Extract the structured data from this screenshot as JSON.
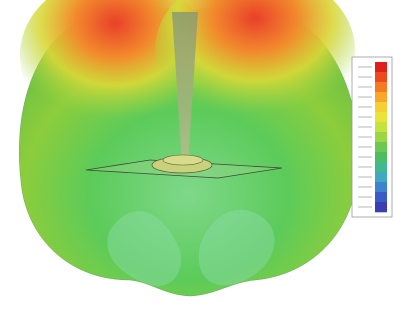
{
  "legend": {
    "colors": [
      "#e0201c",
      "#ee4a1e",
      "#f57a22",
      "#f9a62a",
      "#f6cf33",
      "#e8e43a",
      "#c6e23f",
      "#9ad646",
      "#6cc84e",
      "#4cbd62",
      "#40b98e",
      "#3fa9bf",
      "#3d83d0",
      "#3a5cc6",
      "#3b3eb0"
    ]
  }
}
